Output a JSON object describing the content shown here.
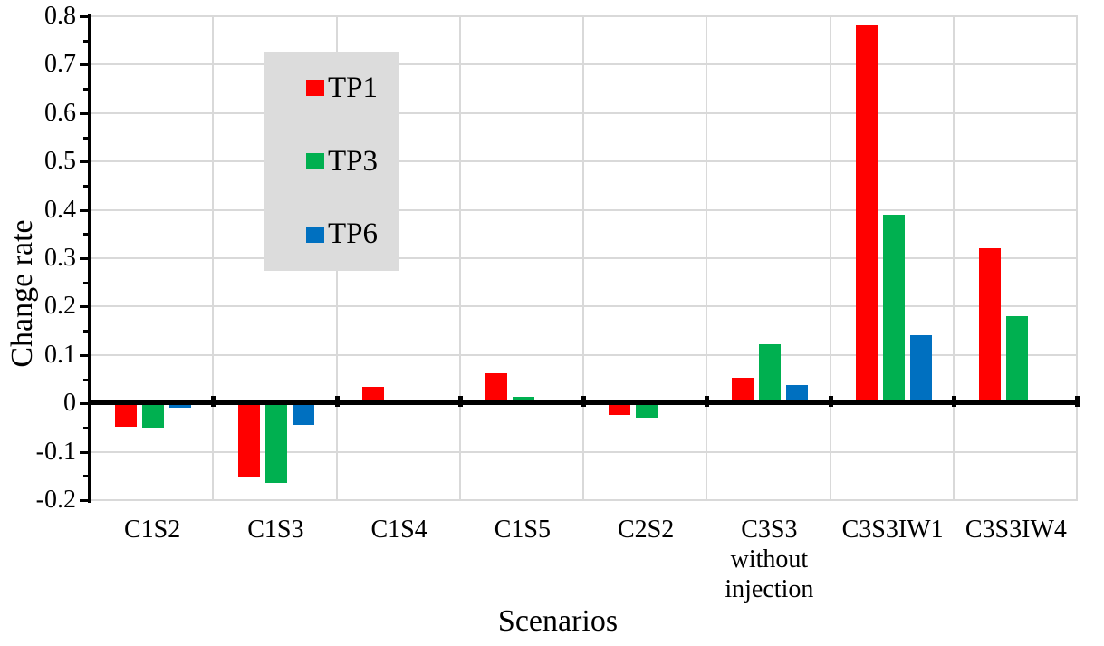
{
  "chart_data": {
    "type": "bar",
    "title": "",
    "xlabel": "Scenarios",
    "ylabel": "Change rate",
    "categories": [
      "C1S2",
      "C1S3",
      "C1S4",
      "C1S5",
      "C2S2",
      "C3S3 without injection",
      "C3S3IW1",
      "C3S3IW4"
    ],
    "category_lines": [
      [
        "C1S2"
      ],
      [
        "C1S3"
      ],
      [
        "C1S4"
      ],
      [
        "C1S5"
      ],
      [
        "C2S2"
      ],
      [
        "C3S3",
        "without",
        "injection"
      ],
      [
        "C3S3IW1"
      ],
      [
        "C3S3IW4"
      ]
    ],
    "series": [
      {
        "name": "TP1",
        "color": "#FF0000",
        "values": [
          -0.046,
          -0.151,
          0.033,
          0.062,
          -0.023,
          0.053,
          0.78,
          0.32
        ]
      },
      {
        "name": "TP3",
        "color": "#00B050",
        "values": [
          -0.049,
          -0.163,
          0.008,
          0.013,
          -0.029,
          0.122,
          0.39,
          0.18
        ]
      },
      {
        "name": "TP6",
        "color": "#0070C0",
        "values": [
          -0.008,
          -0.043,
          0.002,
          0.006,
          0.007,
          0.037,
          0.14,
          0.007
        ]
      }
    ],
    "ylim": [
      -0.2,
      0.8
    ],
    "ytick_step": 0.1,
    "ytick_labels": [
      "0.8",
      "0.7",
      "0.6",
      "0.5",
      "0.4",
      "0.3",
      "0.2",
      "0.1",
      "0",
      "-0.1",
      "-0.2"
    ],
    "grid": true,
    "gridline_color": "#D9D9D9",
    "axis_color": "#000000",
    "legend_position": "inside-upper-left",
    "legend_background": "#DCDCDC"
  }
}
